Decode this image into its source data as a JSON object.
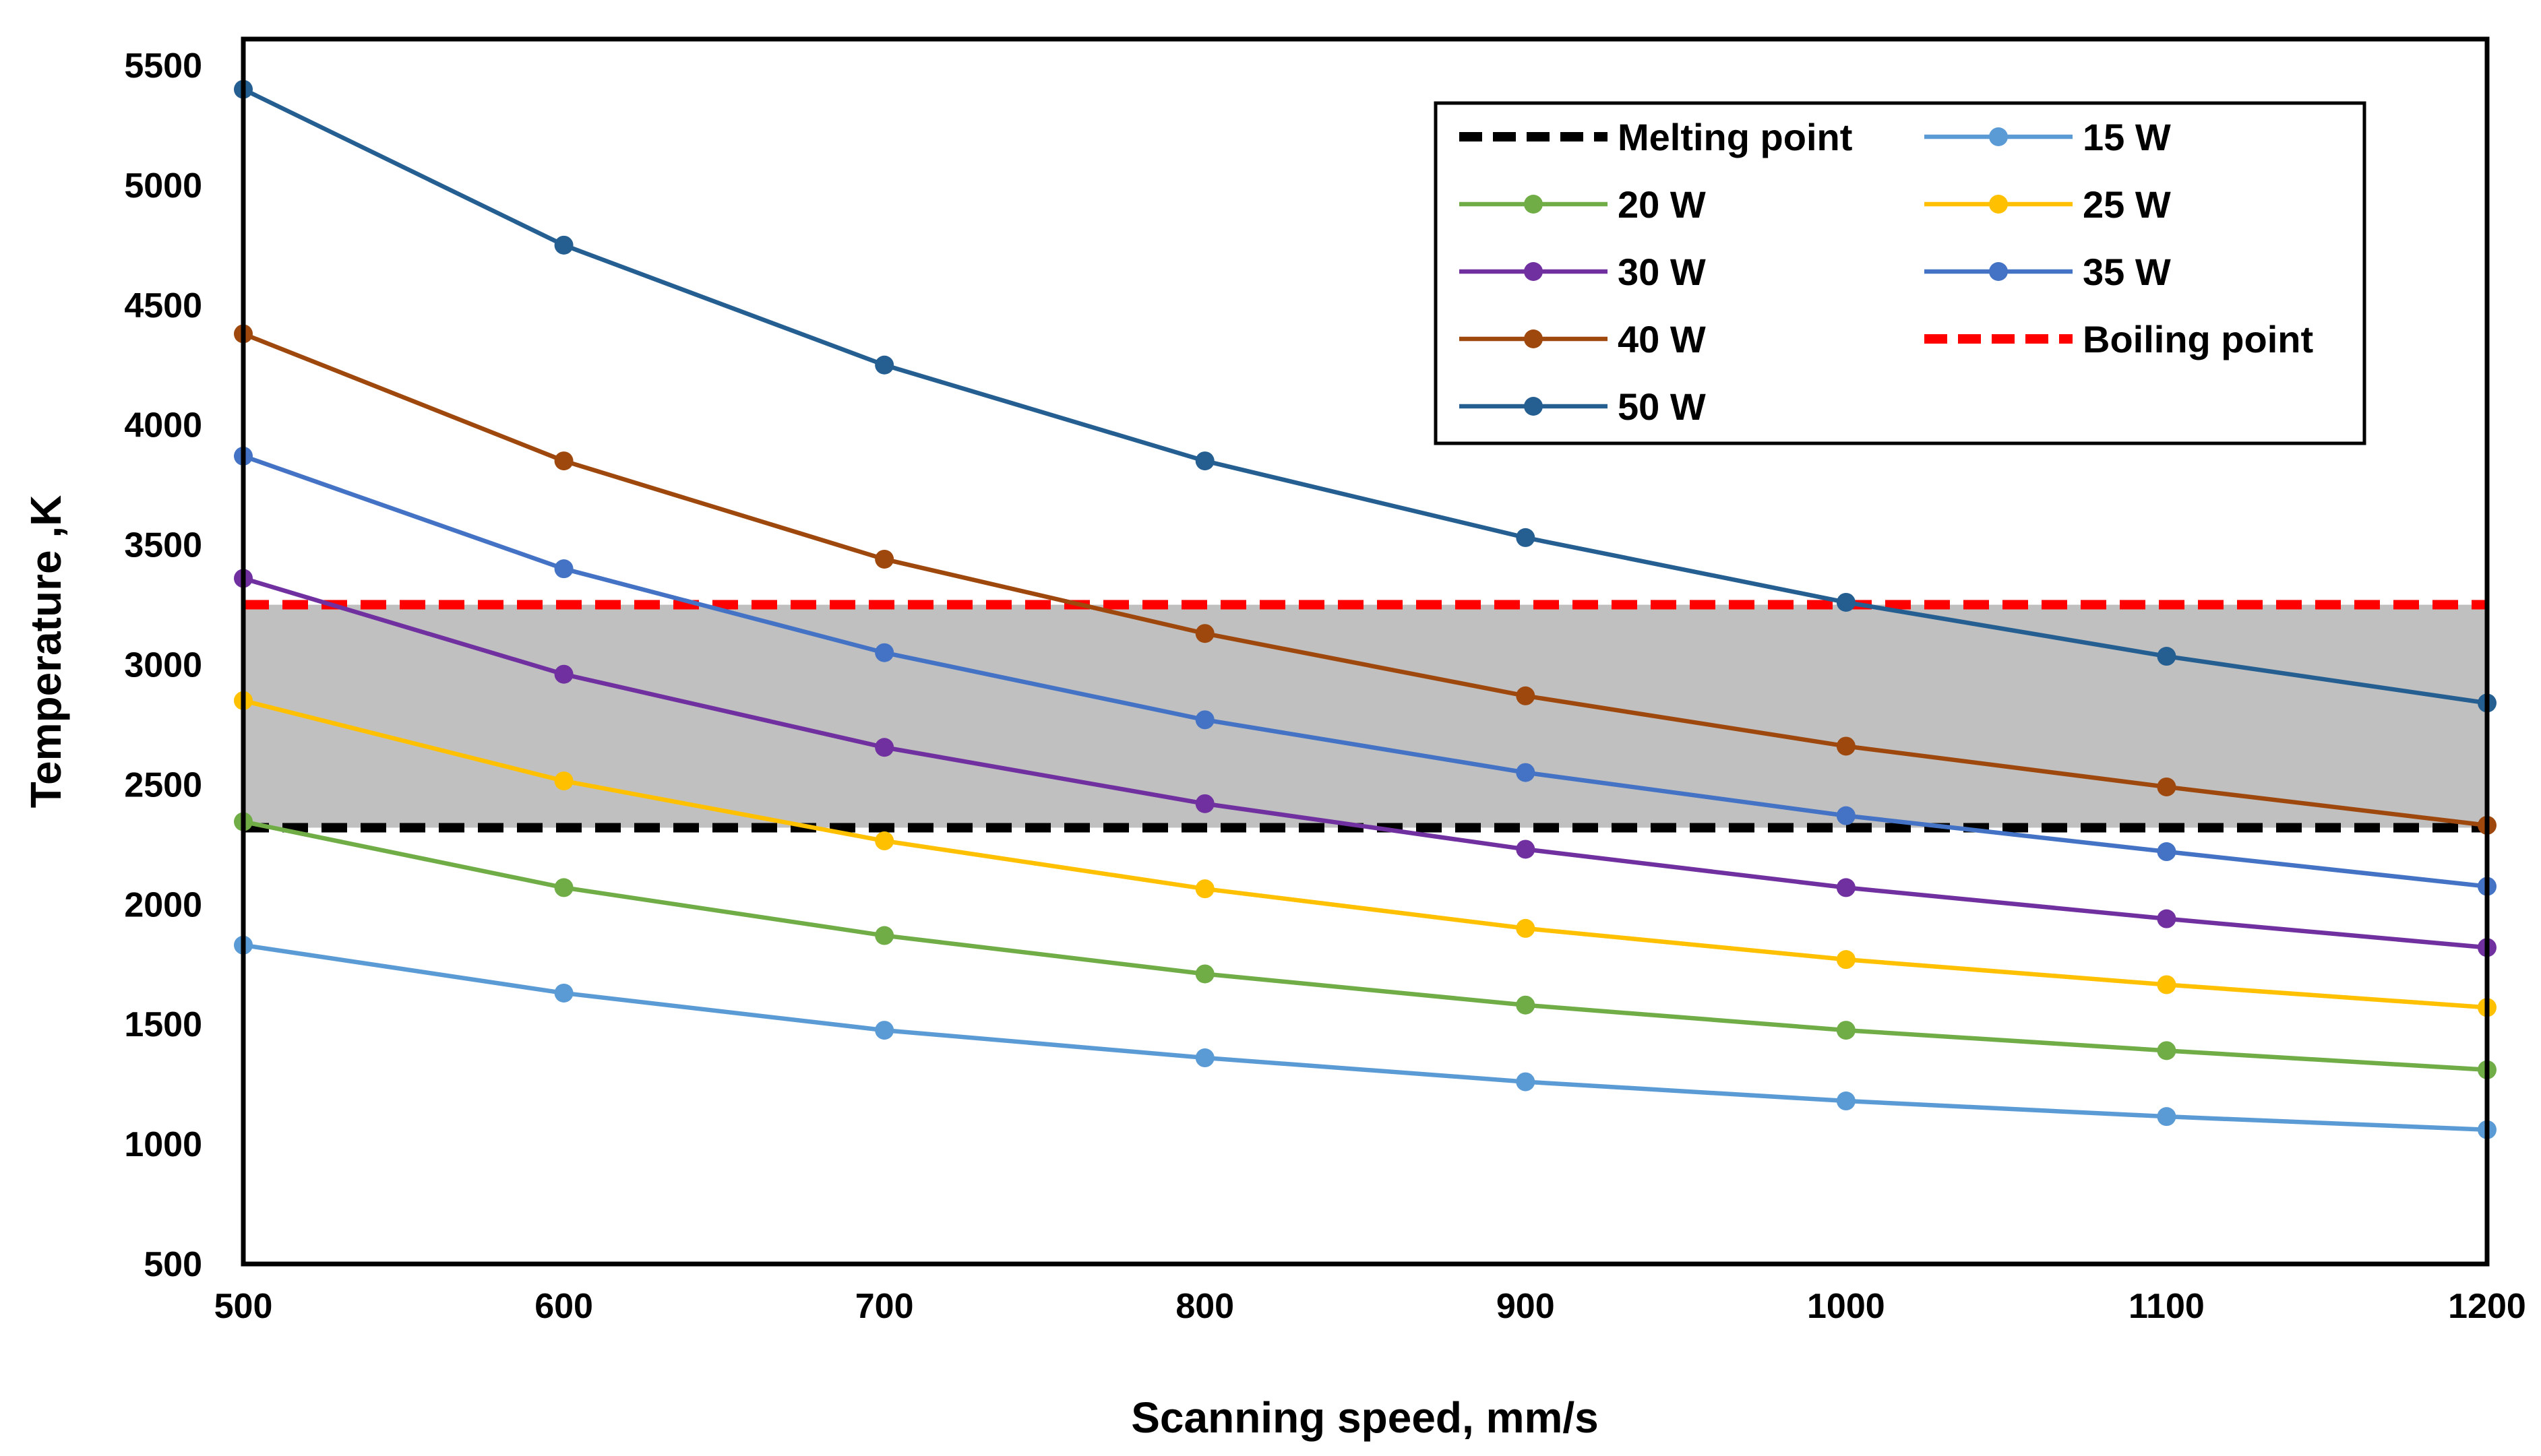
{
  "chart_data": {
    "type": "line",
    "title": "",
    "xlabel": "Scanning speed, mm/s",
    "ylabel": "Temperature ,K",
    "x": [
      500,
      600,
      700,
      800,
      900,
      1000,
      1100,
      1200
    ],
    "xlim": [
      500,
      1200
    ],
    "ylim": [
      500,
      5500
    ],
    "x_ticks": [
      "500",
      "600",
      "700",
      "800",
      "900",
      "1000",
      "1100",
      "1200"
    ],
    "y_ticks": [
      "500",
      "1000",
      "1500",
      "2000",
      "2500",
      "3000",
      "3500",
      "4000",
      "4500",
      "5000",
      "5500"
    ],
    "grid": false,
    "legend_position": "top-right",
    "shaded_band": {
      "from": 2320,
      "to": 3250,
      "color": "#c0c0c0"
    },
    "reference_lines": [
      {
        "name": "Melting point",
        "value": 2320,
        "color": "#000000",
        "style": "dashed"
      },
      {
        "name": "Boiling point",
        "value": 3250,
        "color": "#ff0000",
        "style": "dashed"
      }
    ],
    "series": [
      {
        "name": "15 W",
        "color": "#5b9bd5",
        "values": [
          1830,
          1630,
          1475,
          1360,
          1260,
          1180,
          1115,
          1060
        ]
      },
      {
        "name": "20 W",
        "color": "#70ad47",
        "values": [
          2345,
          2070,
          1870,
          1710,
          1580,
          1475,
          1390,
          1310
        ]
      },
      {
        "name": "25 W",
        "color": "#ffc000",
        "values": [
          2850,
          2515,
          2265,
          2065,
          1900,
          1770,
          1665,
          1570
        ]
      },
      {
        "name": "30 W",
        "color": "#7030a0",
        "values": [
          3360,
          2960,
          2655,
          2420,
          2230,
          2070,
          1940,
          1820
        ]
      },
      {
        "name": "35 W",
        "color": "#4472c4",
        "values": [
          3870,
          3400,
          3050,
          2770,
          2550,
          2370,
          2220,
          2075
        ]
      },
      {
        "name": "40 W",
        "color": "#9e480e",
        "values": [
          4380,
          3850,
          3440,
          3130,
          2870,
          2660,
          2490,
          2330
        ]
      },
      {
        "name": "50 W",
        "color": "#255e91",
        "values": [
          5400,
          4750,
          4250,
          3850,
          3530,
          3260,
          3035,
          2840
        ]
      }
    ],
    "legend_order": [
      "Melting point",
      "15 W",
      "20 W",
      "25 W",
      "30 W",
      "35 W",
      "40 W",
      "Boiling point",
      "50 W"
    ]
  }
}
